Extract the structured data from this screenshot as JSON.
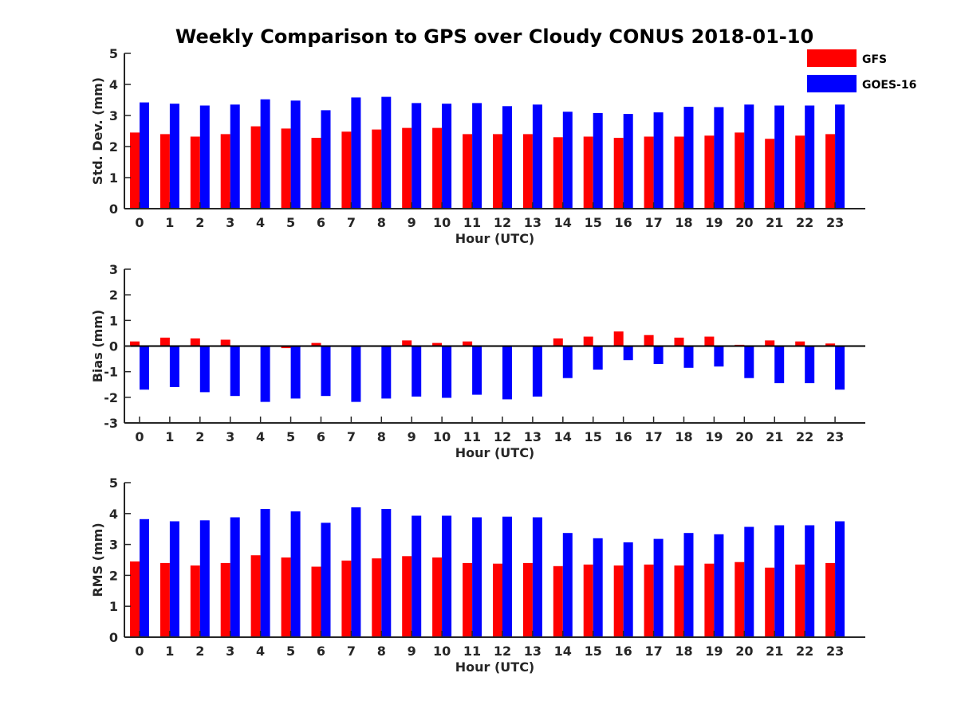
{
  "title": "Weekly Comparison to GPS over Cloudy CONUS 2018-01-10",
  "legend": [
    {
      "label": "GFS",
      "color": "#ff0000"
    },
    {
      "label": "GOES-16",
      "color": "#0000ff"
    }
  ],
  "chart_data": [
    {
      "type": "bar",
      "xlabel": "Hour (UTC)",
      "ylabel": "Std. Dev. (mm)",
      "ylim": [
        0,
        5
      ],
      "yticks": [
        0,
        1,
        2,
        3,
        4,
        5
      ],
      "categories": [
        "0",
        "1",
        "2",
        "3",
        "4",
        "5",
        "6",
        "7",
        "8",
        "9",
        "10",
        "11",
        "12",
        "13",
        "14",
        "15",
        "16",
        "17",
        "18",
        "19",
        "20",
        "21",
        "22",
        "23"
      ],
      "series": [
        {
          "name": "GFS",
          "color": "#ff0000",
          "values": [
            2.45,
            2.4,
            2.32,
            2.4,
            2.65,
            2.58,
            2.28,
            2.48,
            2.55,
            2.6,
            2.6,
            2.4,
            2.4,
            2.4,
            2.3,
            2.32,
            2.28,
            2.32,
            2.32,
            2.35,
            2.45,
            2.25,
            2.35,
            2.4
          ]
        },
        {
          "name": "GOES-16",
          "color": "#0000ff",
          "values": [
            3.42,
            3.38,
            3.32,
            3.35,
            3.52,
            3.48,
            3.17,
            3.58,
            3.6,
            3.4,
            3.38,
            3.4,
            3.3,
            3.35,
            3.12,
            3.08,
            3.05,
            3.1,
            3.28,
            3.27,
            3.35,
            3.32,
            3.32,
            3.35
          ]
        }
      ]
    },
    {
      "type": "bar",
      "xlabel": "Hour (UTC)",
      "ylabel": "Bias (mm)",
      "ylim": [
        -3,
        3
      ],
      "yticks": [
        -3,
        -2,
        -1,
        0,
        1,
        2,
        3
      ],
      "categories": [
        "0",
        "1",
        "2",
        "3",
        "4",
        "5",
        "6",
        "7",
        "8",
        "9",
        "10",
        "11",
        "12",
        "13",
        "14",
        "15",
        "16",
        "17",
        "18",
        "19",
        "20",
        "21",
        "22",
        "23"
      ],
      "series": [
        {
          "name": "GFS",
          "color": "#ff0000",
          "values": [
            0.18,
            0.33,
            0.3,
            0.25,
            0.0,
            -0.08,
            0.12,
            0.03,
            0.03,
            0.22,
            0.12,
            0.18,
            0.02,
            0.03,
            0.3,
            0.37,
            0.57,
            0.43,
            0.33,
            0.37,
            0.05,
            0.22,
            0.18,
            0.1
          ]
        },
        {
          "name": "GOES-16",
          "color": "#0000ff",
          "values": [
            -1.7,
            -1.6,
            -1.8,
            -1.95,
            -2.18,
            -2.05,
            -1.95,
            -2.18,
            -2.05,
            -1.97,
            -2.02,
            -1.9,
            -2.08,
            -1.97,
            -1.25,
            -0.92,
            -0.55,
            -0.7,
            -0.85,
            -0.8,
            -1.25,
            -1.45,
            -1.45,
            -1.7
          ]
        }
      ]
    },
    {
      "type": "bar",
      "xlabel": "Hour (UTC)",
      "ylabel": "RMS (mm)",
      "ylim": [
        0,
        5
      ],
      "yticks": [
        0,
        1,
        2,
        3,
        4,
        5
      ],
      "categories": [
        "0",
        "1",
        "2",
        "3",
        "4",
        "5",
        "6",
        "7",
        "8",
        "9",
        "10",
        "11",
        "12",
        "13",
        "14",
        "15",
        "16",
        "17",
        "18",
        "19",
        "20",
        "21",
        "22",
        "23"
      ],
      "series": [
        {
          "name": "GFS",
          "color": "#ff0000",
          "values": [
            2.45,
            2.4,
            2.32,
            2.4,
            2.65,
            2.58,
            2.28,
            2.48,
            2.55,
            2.62,
            2.58,
            2.4,
            2.38,
            2.4,
            2.3,
            2.35,
            2.32,
            2.35,
            2.32,
            2.38,
            2.43,
            2.25,
            2.35,
            2.4
          ]
        },
        {
          "name": "GOES-16",
          "color": "#0000ff",
          "values": [
            3.82,
            3.75,
            3.78,
            3.88,
            4.15,
            4.07,
            3.7,
            4.2,
            4.15,
            3.93,
            3.93,
            3.88,
            3.9,
            3.88,
            3.37,
            3.2,
            3.07,
            3.18,
            3.37,
            3.33,
            3.57,
            3.62,
            3.62,
            3.75
          ]
        }
      ]
    }
  ]
}
